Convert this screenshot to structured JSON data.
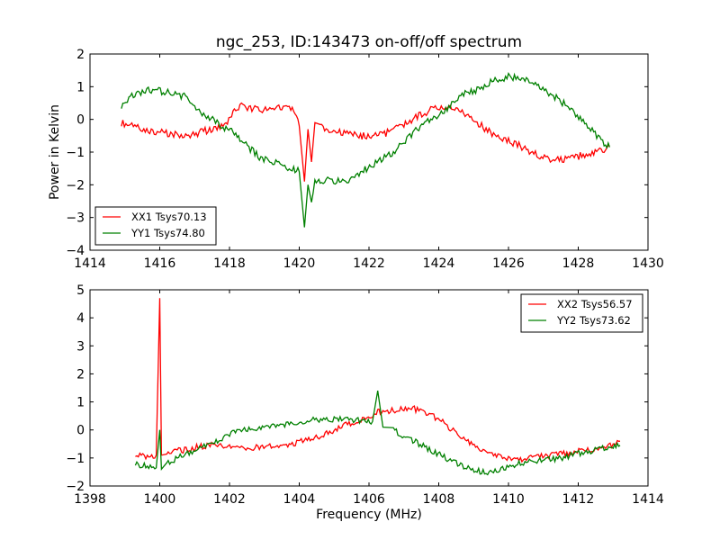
{
  "chart_data": [
    {
      "type": "line",
      "title": "ngc_253, ID:143473 on-off/off spectrum",
      "xlabel": "",
      "ylabel": "Power in Kelvin",
      "xlim": [
        1414,
        1430
      ],
      "ylim": [
        -4,
        2
      ],
      "xticks": [
        1414,
        1416,
        1418,
        1420,
        1422,
        1424,
        1426,
        1428,
        1430
      ],
      "yticks": [
        -4,
        -3,
        -2,
        -1,
        0,
        1,
        2
      ],
      "grid": false,
      "legend_position": "lower-left",
      "x": [
        1414.9,
        1415.2,
        1415.5,
        1415.8,
        1416.1,
        1416.4,
        1416.7,
        1417.0,
        1417.3,
        1417.6,
        1417.9,
        1418.1,
        1418.3,
        1418.6,
        1418.9,
        1419.2,
        1419.5,
        1419.8,
        1420.0,
        1420.15,
        1420.25,
        1420.35,
        1420.45,
        1420.6,
        1420.9,
        1421.2,
        1421.5,
        1421.8,
        1422.1,
        1422.4,
        1422.7,
        1423.0,
        1423.3,
        1423.6,
        1423.9,
        1424.2,
        1424.5,
        1424.8,
        1425.1,
        1425.4,
        1425.7,
        1426.0,
        1426.3,
        1426.6,
        1426.9,
        1427.2,
        1427.5,
        1427.8,
        1428.1,
        1428.4,
        1428.7,
        1428.9
      ],
      "series": [
        {
          "name": "XX1 Tsys70.13",
          "color": "#ff0000",
          "values": [
            -0.1,
            -0.2,
            -0.3,
            -0.35,
            -0.4,
            -0.45,
            -0.5,
            -0.45,
            -0.35,
            -0.3,
            -0.2,
            0.2,
            0.4,
            0.35,
            0.3,
            0.3,
            0.35,
            0.3,
            -0.2,
            -1.9,
            -0.3,
            -1.3,
            -0.1,
            -0.2,
            -0.35,
            -0.4,
            -0.45,
            -0.5,
            -0.5,
            -0.45,
            -0.35,
            -0.15,
            0.05,
            0.2,
            0.35,
            0.4,
            0.3,
            0.1,
            -0.1,
            -0.35,
            -0.5,
            -0.65,
            -0.8,
            -1.0,
            -1.1,
            -1.2,
            -1.25,
            -1.2,
            -1.1,
            -1.0,
            -0.95,
            -0.8
          ]
        },
        {
          "name": "YY1 Tsys74.80",
          "color": "#008000",
          "values": [
            0.4,
            0.7,
            0.85,
            0.9,
            0.85,
            0.8,
            0.7,
            0.4,
            0.1,
            -0.05,
            -0.3,
            -0.4,
            -0.6,
            -0.9,
            -1.2,
            -1.3,
            -1.4,
            -1.5,
            -1.6,
            -3.3,
            -2.0,
            -2.5,
            -1.9,
            -1.9,
            -1.85,
            -1.9,
            -1.8,
            -1.6,
            -1.4,
            -1.2,
            -1.0,
            -0.7,
            -0.4,
            -0.1,
            0.1,
            0.3,
            0.6,
            0.8,
            0.9,
            1.1,
            1.2,
            1.3,
            1.25,
            1.15,
            1.0,
            0.8,
            0.55,
            0.3,
            0.0,
            -0.35,
            -0.7,
            -0.85
          ]
        }
      ]
    },
    {
      "type": "line",
      "title": "",
      "xlabel": "Frequency (MHz)",
      "ylabel": "",
      "xlim": [
        1398,
        1414
      ],
      "ylim": [
        -2,
        5
      ],
      "xticks": [
        1398,
        1400,
        1402,
        1404,
        1406,
        1408,
        1410,
        1412,
        1414
      ],
      "yticks": [
        -2,
        -1,
        0,
        1,
        2,
        3,
        4,
        5
      ],
      "grid": false,
      "legend_position": "upper-right",
      "x": [
        1399.3,
        1399.6,
        1399.9,
        1400.0,
        1400.05,
        1400.2,
        1400.5,
        1400.8,
        1401.1,
        1401.4,
        1401.7,
        1402.0,
        1402.3,
        1402.6,
        1402.9,
        1403.2,
        1403.5,
        1403.8,
        1404.1,
        1404.4,
        1404.7,
        1405.0,
        1405.3,
        1405.6,
        1405.9,
        1406.1,
        1406.25,
        1406.4,
        1406.7,
        1407.0,
        1407.3,
        1407.6,
        1407.9,
        1408.2,
        1408.5,
        1408.8,
        1409.1,
        1409.4,
        1409.7,
        1410.0,
        1410.3,
        1410.6,
        1410.9,
        1411.2,
        1411.5,
        1411.8,
        1412.1,
        1412.4,
        1412.7,
        1413.0,
        1413.2
      ],
      "series": [
        {
          "name": "XX2 Tsys56.57",
          "color": "#ff0000",
          "values": [
            -0.9,
            -0.95,
            -0.9,
            4.7,
            -0.9,
            -0.85,
            -0.75,
            -0.7,
            -0.6,
            -0.55,
            -0.55,
            -0.6,
            -0.6,
            -0.65,
            -0.6,
            -0.55,
            -0.55,
            -0.5,
            -0.4,
            -0.3,
            -0.15,
            0.0,
            0.15,
            0.3,
            0.45,
            0.5,
            0.7,
            0.6,
            0.7,
            0.75,
            0.75,
            0.65,
            0.45,
            0.2,
            -0.1,
            -0.35,
            -0.6,
            -0.8,
            -0.95,
            -1.05,
            -1.05,
            -1.0,
            -0.95,
            -0.9,
            -0.85,
            -0.8,
            -0.75,
            -0.7,
            -0.65,
            -0.55,
            -0.4
          ]
        },
        {
          "name": "YY2 Tsys73.62",
          "color": "#008000",
          "values": [
            -1.2,
            -1.3,
            -1.35,
            0.0,
            -1.4,
            -1.2,
            -1.0,
            -0.85,
            -0.65,
            -0.5,
            -0.35,
            -0.15,
            -0.05,
            0.05,
            0.1,
            0.15,
            0.15,
            0.2,
            0.3,
            0.35,
            0.35,
            0.4,
            0.4,
            0.35,
            0.3,
            0.3,
            1.4,
            0.1,
            0.0,
            -0.2,
            -0.4,
            -0.6,
            -0.8,
            -1.0,
            -1.2,
            -1.35,
            -1.45,
            -1.5,
            -1.4,
            -1.3,
            -1.2,
            -1.15,
            -1.1,
            -1.05,
            -1.0,
            -0.9,
            -0.8,
            -0.75,
            -0.65,
            -0.6,
            -0.55
          ]
        }
      ]
    }
  ]
}
